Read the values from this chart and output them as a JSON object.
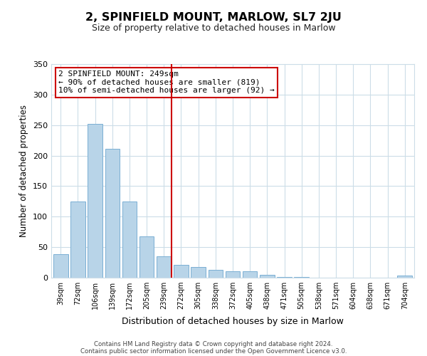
{
  "title": "2, SPINFIELD MOUNT, MARLOW, SL7 2JU",
  "subtitle": "Size of property relative to detached houses in Marlow",
  "xlabel": "Distribution of detached houses by size in Marlow",
  "ylabel": "Number of detached properties",
  "bar_color": "#b8d4e8",
  "bar_edge_color": "#7bafd4",
  "vline_color": "#cc0000",
  "categories": [
    "39sqm",
    "72sqm",
    "106sqm",
    "139sqm",
    "172sqm",
    "205sqm",
    "239sqm",
    "272sqm",
    "305sqm",
    "338sqm",
    "372sqm",
    "405sqm",
    "438sqm",
    "471sqm",
    "505sqm",
    "538sqm",
    "571sqm",
    "604sqm",
    "638sqm",
    "671sqm",
    "704sqm"
  ],
  "values": [
    38,
    125,
    252,
    211,
    125,
    68,
    35,
    21,
    17,
    13,
    10,
    10,
    5,
    1,
    1,
    0,
    0,
    0,
    0,
    0,
    3
  ],
  "vline_index": 6,
  "annotation_title": "2 SPINFIELD MOUNT: 249sqm",
  "annotation_line1": "← 90% of detached houses are smaller (819)",
  "annotation_line2": "10% of semi-detached houses are larger (92) →",
  "annotation_box_color": "#ffffff",
  "annotation_box_edge_color": "#cc0000",
  "ylim": [
    0,
    350
  ],
  "yticks": [
    0,
    50,
    100,
    150,
    200,
    250,
    300,
    350
  ],
  "footer_line1": "Contains HM Land Registry data © Crown copyright and database right 2024.",
  "footer_line2": "Contains public sector information licensed under the Open Government Licence v3.0."
}
